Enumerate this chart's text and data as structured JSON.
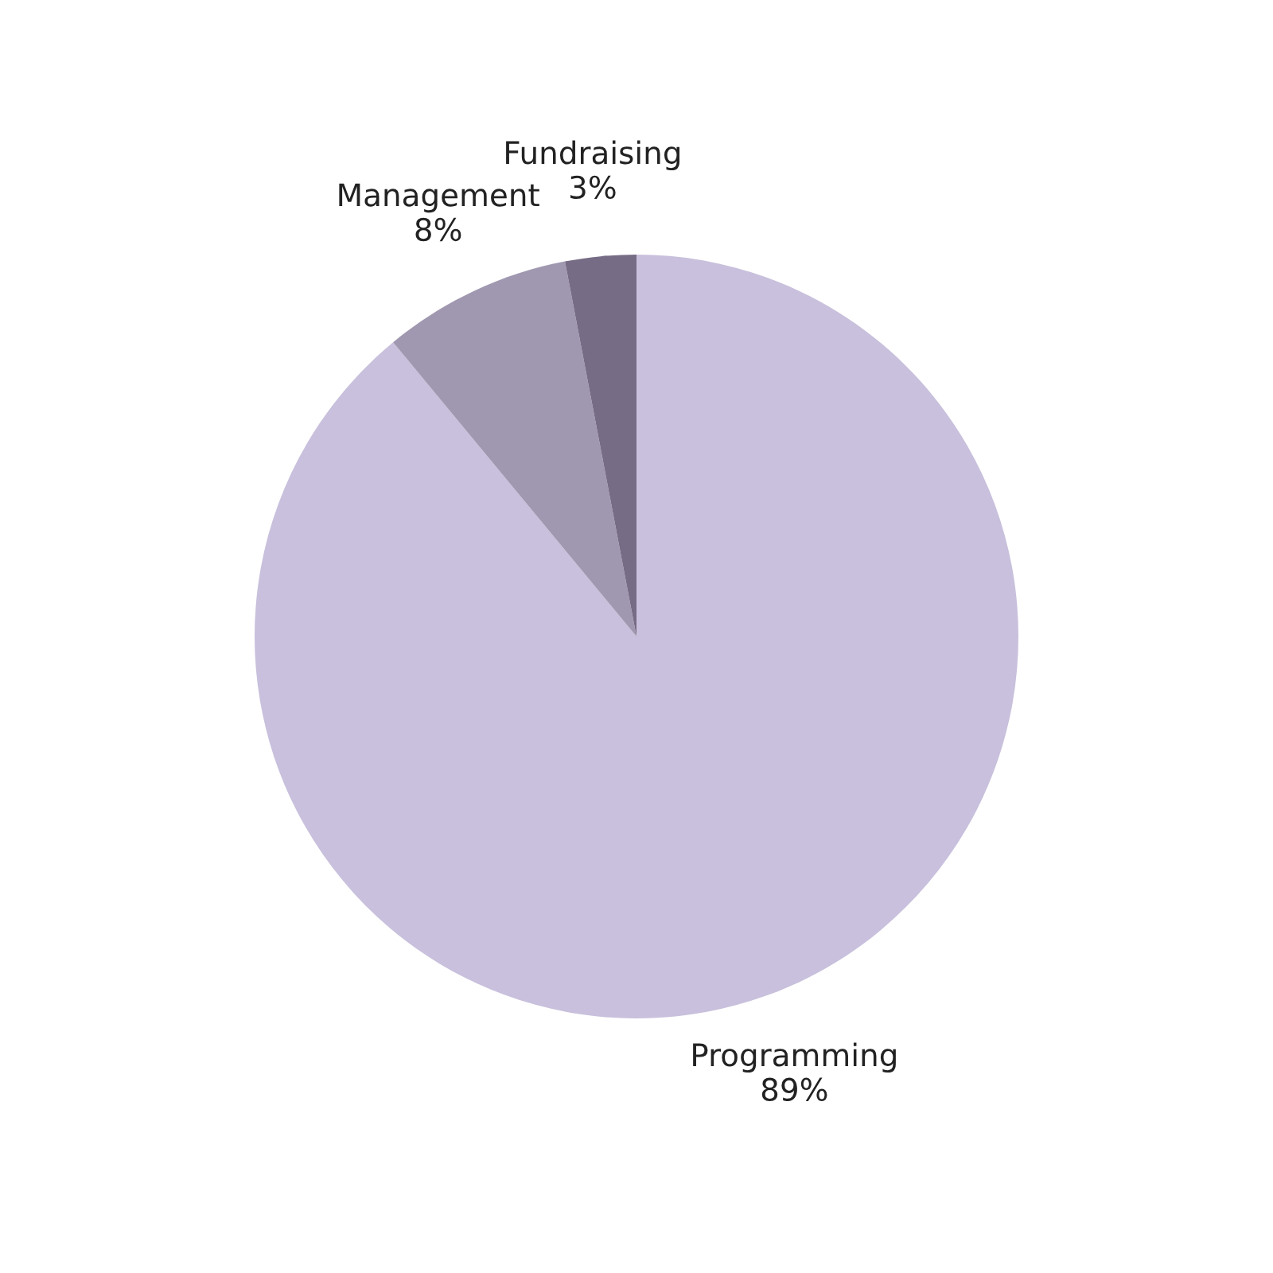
{
  "chart_data": {
    "type": "pie",
    "categories": [
      "Programming",
      "Management",
      "Fundraising"
    ],
    "values": [
      89,
      8,
      3
    ],
    "value_labels": [
      "89%",
      "8%",
      "3%"
    ],
    "colors": [
      "#c8c0dc",
      "#a098b0",
      "#776c86"
    ],
    "legend": false
  }
}
